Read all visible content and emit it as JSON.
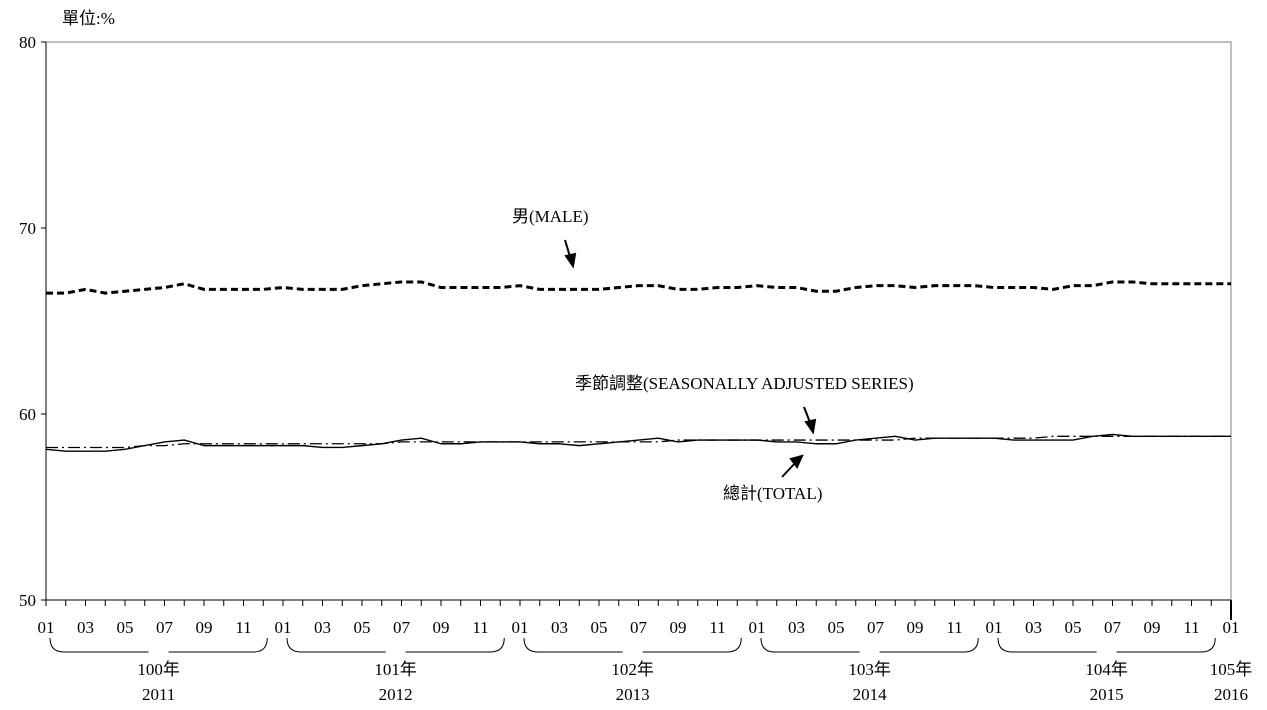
{
  "chart_data": {
    "type": "line",
    "unit_label": "單位:%",
    "ylim": [
      50,
      80
    ],
    "yticks": [
      "50",
      "60",
      "70",
      "80"
    ],
    "x_month_labels": [
      "01",
      "03",
      "05",
      "07",
      "09",
      "11",
      "01",
      "03",
      "05",
      "07",
      "09",
      "11",
      "01",
      "03",
      "05",
      "07",
      "09",
      "11",
      "01",
      "03",
      "05",
      "07",
      "09",
      "11",
      "01",
      "03",
      "05",
      "07",
      "09",
      "11",
      "01"
    ],
    "x_year_groups": [
      {
        "roc": "100年",
        "ad": "2011"
      },
      {
        "roc": "101年",
        "ad": "2012"
      },
      {
        "roc": "102年",
        "ad": "2013"
      },
      {
        "roc": "103年",
        "ad": "2014"
      },
      {
        "roc": "104年",
        "ad": "2015"
      },
      {
        "roc": "105年",
        "ad": "2016"
      }
    ],
    "series": [
      {
        "name": "男(MALE)",
        "style": "dashed-bold",
        "color": "#000000",
        "values": [
          66.5,
          66.5,
          66.7,
          66.5,
          66.6,
          66.7,
          66.8,
          67.0,
          66.7,
          66.7,
          66.7,
          66.7,
          66.8,
          66.7,
          66.7,
          66.7,
          66.9,
          67.0,
          67.1,
          67.1,
          66.8,
          66.8,
          66.8,
          66.8,
          66.9,
          66.7,
          66.7,
          66.7,
          66.7,
          66.8,
          66.9,
          66.9,
          66.7,
          66.7,
          66.8,
          66.8,
          66.9,
          66.8,
          66.8,
          66.6,
          66.6,
          66.8,
          66.9,
          66.9,
          66.8,
          66.9,
          66.9,
          66.9,
          66.8,
          66.8,
          66.8,
          66.7,
          66.9,
          66.9,
          67.1,
          67.1,
          67.0,
          67.0,
          67.0,
          67.0,
          67.0
        ]
      },
      {
        "name": "總計(TOTAL)",
        "style": "solid",
        "color": "#000000",
        "values": [
          58.1,
          58.0,
          58.0,
          58.0,
          58.1,
          58.3,
          58.5,
          58.6,
          58.3,
          58.3,
          58.3,
          58.3,
          58.3,
          58.3,
          58.2,
          58.2,
          58.3,
          58.4,
          58.6,
          58.7,
          58.4,
          58.4,
          58.5,
          58.5,
          58.5,
          58.4,
          58.4,
          58.3,
          58.4,
          58.5,
          58.6,
          58.7,
          58.5,
          58.6,
          58.6,
          58.6,
          58.6,
          58.5,
          58.5,
          58.4,
          58.4,
          58.6,
          58.7,
          58.8,
          58.6,
          58.7,
          58.7,
          58.7,
          58.7,
          58.6,
          58.6,
          58.6,
          58.6,
          58.8,
          58.9,
          58.8,
          58.8,
          58.8,
          58.8,
          58.8,
          58.8
        ]
      },
      {
        "name": "季節調整(SEASONALLY ADJUSTED SERIES)",
        "style": "dash-dot",
        "color": "#000000",
        "values": [
          58.2,
          58.2,
          58.2,
          58.2,
          58.2,
          58.3,
          58.3,
          58.4,
          58.4,
          58.4,
          58.4,
          58.4,
          58.4,
          58.4,
          58.4,
          58.4,
          58.4,
          58.4,
          58.5,
          58.5,
          58.5,
          58.5,
          58.5,
          58.5,
          58.5,
          58.5,
          58.5,
          58.5,
          58.5,
          58.5,
          58.5,
          58.5,
          58.6,
          58.6,
          58.6,
          58.6,
          58.6,
          58.6,
          58.6,
          58.6,
          58.6,
          58.6,
          58.6,
          58.6,
          58.7,
          58.7,
          58.7,
          58.7,
          58.7,
          58.7,
          58.7,
          58.8,
          58.8,
          58.8,
          58.8,
          58.8,
          58.8,
          58.8,
          58.8,
          58.8,
          58.8
        ]
      }
    ],
    "annotations": {
      "male": "男(MALE)",
      "seasonal": "季節調整(SEASONALLY ADJUSTED SERIES)",
      "total": "總計(TOTAL)"
    },
    "grid": false,
    "legend": "none"
  }
}
